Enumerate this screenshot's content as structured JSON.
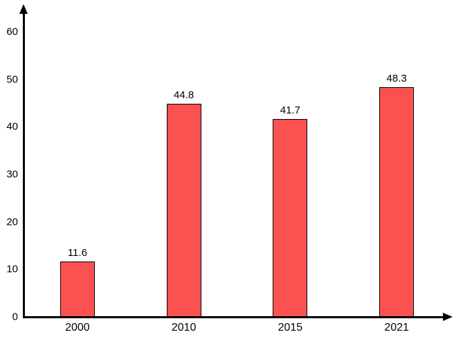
{
  "chart_data": {
    "type": "bar",
    "title": "",
    "xlabel": "",
    "ylabel": "",
    "categories": [
      "2000",
      "2010",
      "2015",
      "2021"
    ],
    "values": [
      11.6,
      44.8,
      41.7,
      48.3
    ],
    "value_labels": [
      "11.6",
      "44.8",
      "41.7",
      "48.3"
    ],
    "ylim": [
      0,
      60
    ],
    "y_ticks": [
      0,
      10,
      20,
      30,
      40,
      50,
      60
    ],
    "grid": false,
    "legend": false,
    "bar_color": "#FB5151",
    "bar_border_color": "#000000",
    "axis_color": "#000000",
    "text_color": "#000000",
    "background_color": "#FFFFFF"
  }
}
